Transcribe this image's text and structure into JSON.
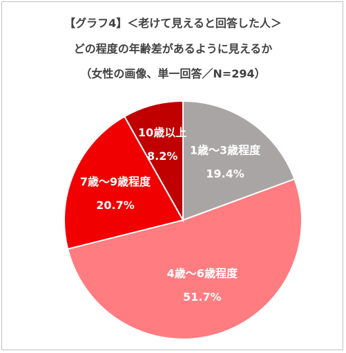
{
  "chart_data": {
    "type": "pie",
    "title": "【グラフ4】＜老けて見えると回答した人＞",
    "subtitle": "どの程度の年齢差があるように見えるか",
    "note": "（女性の画像、単一回答／N=294）",
    "slices": [
      {
        "label": "1歳～3歳程度",
        "value": 19.4,
        "display": "19.4%",
        "color": "#aaa5a5"
      },
      {
        "label": "4歳～6歳程度",
        "value": 51.7,
        "display": "51.7%",
        "color": "#ff7c80"
      },
      {
        "label": "7歳～9歳程度",
        "value": 20.7,
        "display": "20.7%",
        "color": "#f00000"
      },
      {
        "label": "10歳以上",
        "value": 8.2,
        "display": "8.2%",
        "color": "#c00000"
      }
    ]
  }
}
